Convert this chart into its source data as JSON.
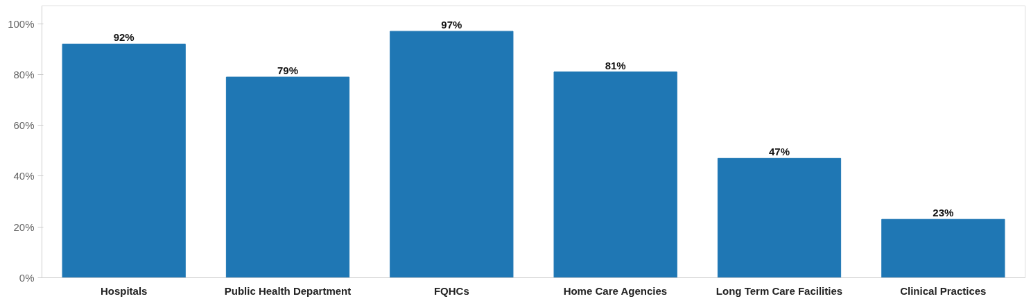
{
  "chart_data": {
    "type": "bar",
    "categories": [
      "Hospitals",
      "Public Health Department",
      "FQHCs",
      "Home Care Agencies",
      "Long Term Care Facilities",
      "Clinical Practices"
    ],
    "values": [
      92,
      79,
      97,
      81,
      47,
      23
    ],
    "color": "#1f77b4",
    "value_labels": [
      "92%",
      "79%",
      "97%",
      "81%",
      "47%",
      "23%"
    ],
    "ylim": [
      0,
      107
    ],
    "yticks": [
      {
        "value": 0,
        "label": "0%"
      },
      {
        "value": 20,
        "label": "20%"
      },
      {
        "value": 40,
        "label": "40%"
      },
      {
        "value": 60,
        "label": "60%"
      },
      {
        "value": 80,
        "label": "80%"
      },
      {
        "value": 100,
        "label": "100%"
      }
    ],
    "grid": false
  }
}
